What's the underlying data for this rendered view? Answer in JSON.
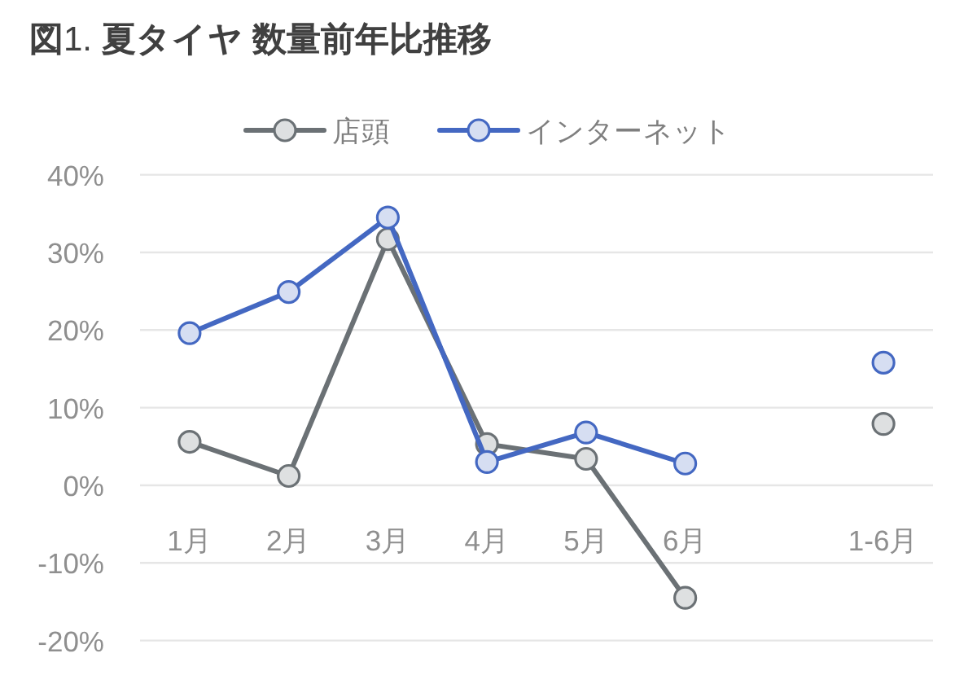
{
  "chart_data": {
    "type": "line",
    "title": "**図**1. **夏タイヤ 数量前年比推移**",
    "categories": [
      "1月",
      "2月",
      "3月",
      "4月",
      "5月",
      "6月",
      null,
      "1-6月"
    ],
    "series": [
      {
        "name": "店頭",
        "color": "#6b7175",
        "values": [
          5.6,
          1.2,
          31.7,
          5.3,
          3.4,
          -14.5,
          null,
          7.9
        ]
      },
      {
        "name": "インターネット",
        "color": "#4468c2",
        "values": [
          19.6,
          24.9,
          34.5,
          3.0,
          6.8,
          2.8,
          null,
          15.8
        ]
      }
    ],
    "ylim": [
      -20,
      40
    ],
    "yticks": [
      {
        "value": -20,
        "label": "-20%"
      },
      {
        "value": -10,
        "label": "-10%"
      },
      {
        "value": 0,
        "label": "0%"
      },
      {
        "value": 10,
        "label": "10%"
      },
      {
        "value": 20,
        "label": "20%"
      },
      {
        "value": 30,
        "label": "30%"
      },
      {
        "value": 40,
        "label": "40%"
      }
    ],
    "grid": "y",
    "legend": "top",
    "marker": "circle"
  }
}
